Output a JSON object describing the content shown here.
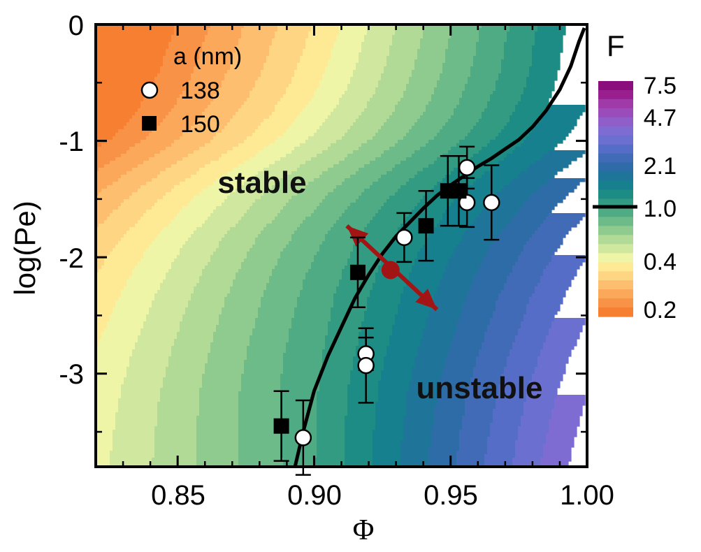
{
  "chart_data": {
    "type": "scatter",
    "xlabel": "Φ",
    "ylabel": "log(Pe)",
    "xlim": [
      0.82,
      1.0
    ],
    "ylim": [
      -3.8,
      0
    ],
    "x_ticks": [
      "0.85",
      "0.90",
      "0.95",
      "1.00"
    ],
    "y_ticks": [
      "0",
      "-1",
      "-2",
      "-3"
    ],
    "region_labels": {
      "stable": "stable",
      "unstable": "unstable"
    },
    "legend": {
      "title": "a (nm)",
      "entries": [
        "138",
        "150"
      ]
    },
    "colorbar": {
      "title": "F",
      "labels": [
        "7.5",
        "4.7",
        "2.1",
        "1.0",
        "0.4",
        "0.2"
      ],
      "colors": [
        "#f67f32",
        "#f89246",
        "#fba85b",
        "#fdbe6f",
        "#fed583",
        "#fee995",
        "#eef5a6",
        "#cfe79e",
        "#b0da95",
        "#8fcb8e",
        "#6dbb89",
        "#4fab84",
        "#339b81",
        "#1d8c85",
        "#17808f",
        "#1f7599",
        "#2e6ca7",
        "#416ab7",
        "#556dc6",
        "#6b70d0",
        "#7f6cd2",
        "#8f5ec9",
        "#9a4cbb",
        "#a03aa9",
        "#991f8f",
        "#8a0f7d"
      ]
    },
    "series": [
      {
        "name": "138",
        "marker": "open-circle",
        "points": [
          {
            "x": 0.896,
            "y": -3.55,
            "err": 0.32
          },
          {
            "x": 0.919,
            "y": -2.83,
            "err": 0.14
          },
          {
            "x": 0.919,
            "y": -2.93,
            "err": 0.32
          },
          {
            "x": 0.933,
            "y": -1.83,
            "err": 0.21
          },
          {
            "x": 0.956,
            "y": -1.23,
            "err": 0.18
          },
          {
            "x": 0.956,
            "y": -1.53,
            "err": 0.21
          },
          {
            "x": 0.965,
            "y": -1.53,
            "err": 0.32
          }
        ]
      },
      {
        "name": "150",
        "marker": "filled-square",
        "points": [
          {
            "x": 0.888,
            "y": -3.45,
            "err": 0.3
          },
          {
            "x": 0.916,
            "y": -2.13,
            "err": 0.3
          },
          {
            "x": 0.941,
            "y": -1.73,
            "err": 0.3
          },
          {
            "x": 0.949,
            "y": -1.43,
            "err": 0.3
          },
          {
            "x": 0.953,
            "y": -1.43,
            "err": 0.3
          }
        ]
      }
    ],
    "boundary_curve": [
      [
        0.893,
        -3.8
      ],
      [
        0.896,
        -3.5
      ],
      [
        0.9,
        -3.15
      ],
      [
        0.905,
        -2.85
      ],
      [
        0.91,
        -2.6
      ],
      [
        0.915,
        -2.35
      ],
      [
        0.92,
        -2.15
      ],
      [
        0.925,
        -1.97
      ],
      [
        0.93,
        -1.82
      ],
      [
        0.935,
        -1.7
      ],
      [
        0.94,
        -1.58
      ],
      [
        0.945,
        -1.47
      ],
      [
        0.95,
        -1.38
      ],
      [
        0.955,
        -1.3
      ],
      [
        0.96,
        -1.22
      ],
      [
        0.965,
        -1.15
      ],
      [
        0.97,
        -1.07
      ],
      [
        0.975,
        -0.99
      ],
      [
        0.98,
        -0.88
      ],
      [
        0.985,
        -0.74
      ],
      [
        0.99,
        -0.56
      ],
      [
        0.994,
        -0.36
      ],
      [
        0.997,
        -0.15
      ],
      [
        0.999,
        -0.03
      ]
    ],
    "arrow": {
      "from": [
        0.912,
        -1.73
      ],
      "to": [
        0.945,
        -2.45
      ],
      "center": [
        0.928,
        -2.11
      ],
      "color": "#a31515"
    }
  }
}
